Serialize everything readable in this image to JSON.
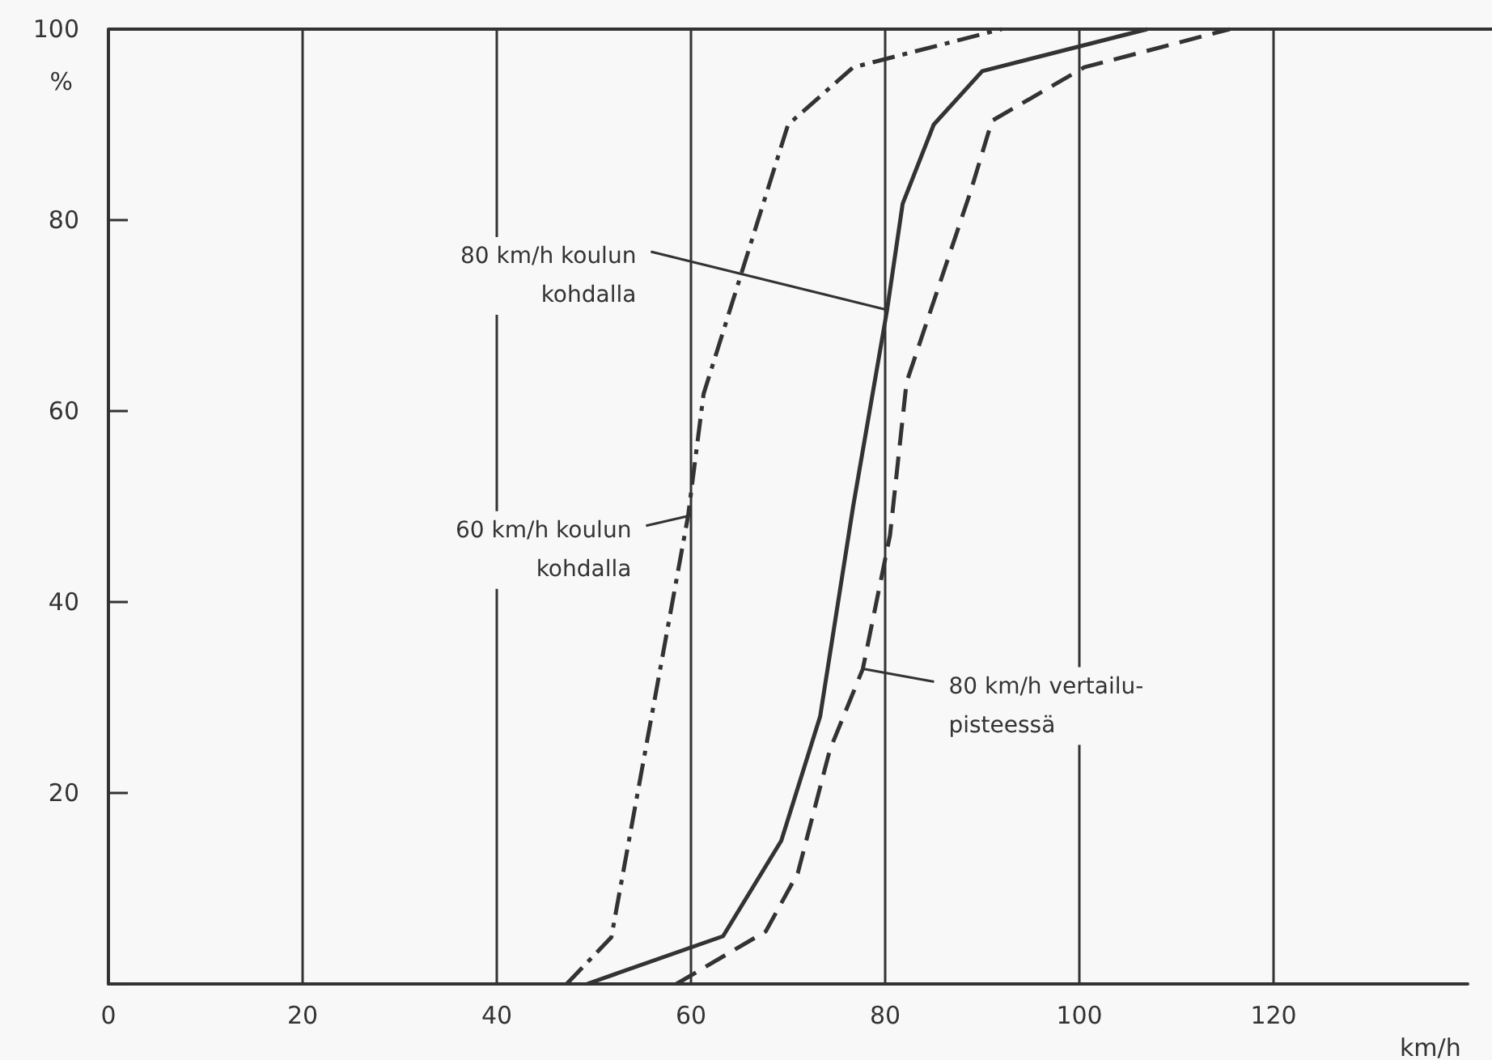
{
  "chart_data": {
    "type": "line",
    "xlabel": "km/h",
    "ylabel": "%",
    "xlim": [
      0,
      140
    ],
    "xticks": [
      0,
      20,
      40,
      60,
      80,
      100,
      120
    ],
    "ylim": [
      0,
      100
    ],
    "yticks": [
      {
        "value": 0,
        "label": null
      },
      20,
      40,
      60,
      80,
      100
    ],
    "grid": "x",
    "marker": "none",
    "series": [
      {
        "color": "#333333",
        "line_style": "dashdot",
        "x": [
          47.2,
          51.8,
          59.7,
          61.3,
          70,
          76.7,
          92
        ],
        "values": [
          0,
          4.9,
          49,
          61.8,
          90,
          96,
          100
        ]
      },
      {
        "color": "#333333",
        "line_style": "solid",
        "x": [
          49.3,
          63.3,
          69.3,
          73.3,
          76.7,
          80.2,
          81.8,
          85,
          90,
          107
        ],
        "values": [
          0,
          5,
          15,
          28,
          50,
          70.6,
          81.7,
          90,
          95.6,
          100
        ]
      },
      {
        "color": "#333333",
        "line_style": "dashed",
        "x": [
          58.5,
          67.7,
          71,
          74.3,
          77.7,
          80.5,
          82.2,
          88.8,
          91,
          100.5,
          115.5
        ],
        "values": [
          0,
          5.5,
          11.6,
          24.5,
          33,
          47,
          63,
          83,
          90.4,
          96,
          100
        ]
      }
    ],
    "annotations": [
      {
        "text": "80 km/h koulun\nkohdalla",
        "x": 80.2,
        "y": 70.6
      },
      {
        "text": "60 km/h koulun\nkohdalla",
        "x": 59.7,
        "y": 49
      },
      {
        "text": "80 km/h vertailu-\npisteessä",
        "x": 77.7,
        "y": 33
      }
    ]
  }
}
